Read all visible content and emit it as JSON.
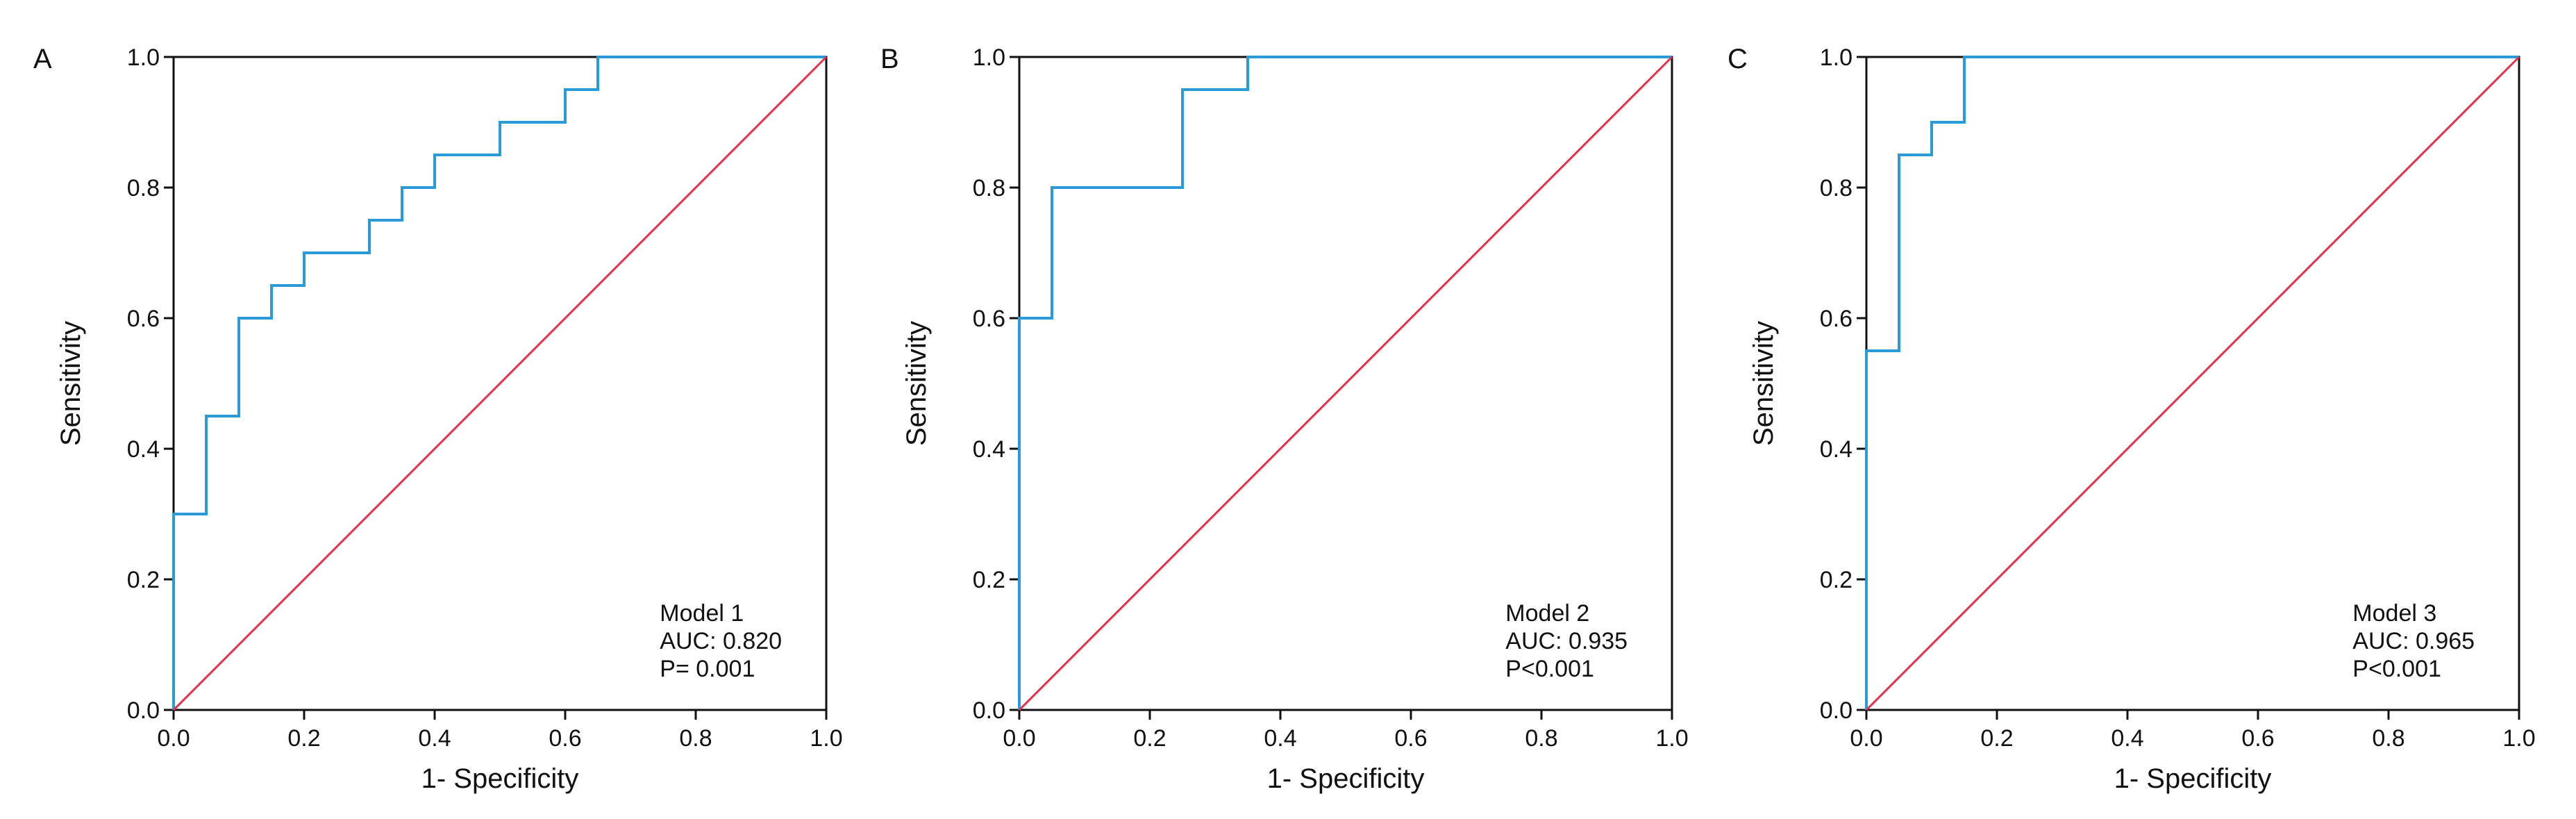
{
  "colors": {
    "roc": "#2b9bd8",
    "reference": "#e8304a",
    "axis": "#111111",
    "background": "#ffffff"
  },
  "chart_data": [
    {
      "type": "line",
      "panel_label": "A",
      "xlabel": "1- Specificity",
      "ylabel": "Sensitivity",
      "xlim": [
        0,
        1
      ],
      "ylim": [
        0,
        1
      ],
      "xticks": [
        "0.0",
        "0.2",
        "0.4",
        "0.6",
        "0.8",
        "1.0"
      ],
      "yticks": [
        "0.0",
        "0.2",
        "0.4",
        "0.6",
        "0.8",
        "1.0"
      ],
      "grid": false,
      "annotation": [
        "Model 1",
        "AUC: 0.820",
        "P= 0.001"
      ],
      "annotation_position": "bottom-right",
      "series": [
        {
          "name": "Model 1 ROC",
          "x": [
            0,
            0,
            0.05,
            0.05,
            0.1,
            0.1,
            0.15,
            0.15,
            0.2,
            0.2,
            0.3,
            0.3,
            0.35,
            0.35,
            0.4,
            0.4,
            0.5,
            0.5,
            0.6,
            0.6,
            0.65,
            0.65,
            1.0
          ],
          "y": [
            0,
            0.3,
            0.3,
            0.45,
            0.45,
            0.6,
            0.6,
            0.65,
            0.65,
            0.7,
            0.7,
            0.75,
            0.75,
            0.8,
            0.8,
            0.85,
            0.85,
            0.9,
            0.9,
            0.95,
            0.95,
            1.0,
            1.0
          ]
        },
        {
          "name": "Reference",
          "x": [
            0,
            1
          ],
          "y": [
            0,
            1
          ]
        }
      ]
    },
    {
      "type": "line",
      "panel_label": "B",
      "xlabel": "1- Specificity",
      "ylabel": "Sensitivity",
      "xlim": [
        0,
        1
      ],
      "ylim": [
        0,
        1
      ],
      "xticks": [
        "0.0",
        "0.2",
        "0.4",
        "0.6",
        "0.8",
        "1.0"
      ],
      "yticks": [
        "0.0",
        "0.2",
        "0.4",
        "0.6",
        "0.8",
        "1.0"
      ],
      "grid": false,
      "annotation": [
        "Model 2",
        "AUC: 0.935",
        "P<0.001"
      ],
      "annotation_position": "bottom-right",
      "series": [
        {
          "name": "Model 2 ROC",
          "x": [
            0,
            0,
            0.05,
            0.05,
            0.25,
            0.25,
            0.35,
            0.35,
            1.0
          ],
          "y": [
            0,
            0.6,
            0.6,
            0.8,
            0.8,
            0.95,
            0.95,
            1.0,
            1.0
          ]
        },
        {
          "name": "Reference",
          "x": [
            0,
            1
          ],
          "y": [
            0,
            1
          ]
        }
      ]
    },
    {
      "type": "line",
      "panel_label": "C",
      "xlabel": "1- Specificity",
      "ylabel": "Sensitivity",
      "xlim": [
        0,
        1
      ],
      "ylim": [
        0,
        1
      ],
      "xticks": [
        "0.0",
        "0.2",
        "0.4",
        "0.6",
        "0.8",
        "1.0"
      ],
      "yticks": [
        "0.0",
        "0.2",
        "0.4",
        "0.6",
        "0.8",
        "1.0"
      ],
      "grid": false,
      "annotation": [
        "Model 3",
        "AUC: 0.965",
        "P<0.001"
      ],
      "annotation_position": "bottom-right",
      "series": [
        {
          "name": "Model 3 ROC",
          "x": [
            0,
            0,
            0.05,
            0.05,
            0.1,
            0.1,
            0.15,
            0.15,
            1.0
          ],
          "y": [
            0,
            0.55,
            0.55,
            0.85,
            0.85,
            0.9,
            0.9,
            1.0,
            1.0
          ]
        },
        {
          "name": "Reference",
          "x": [
            0,
            1
          ],
          "y": [
            0,
            1
          ]
        }
      ]
    }
  ]
}
